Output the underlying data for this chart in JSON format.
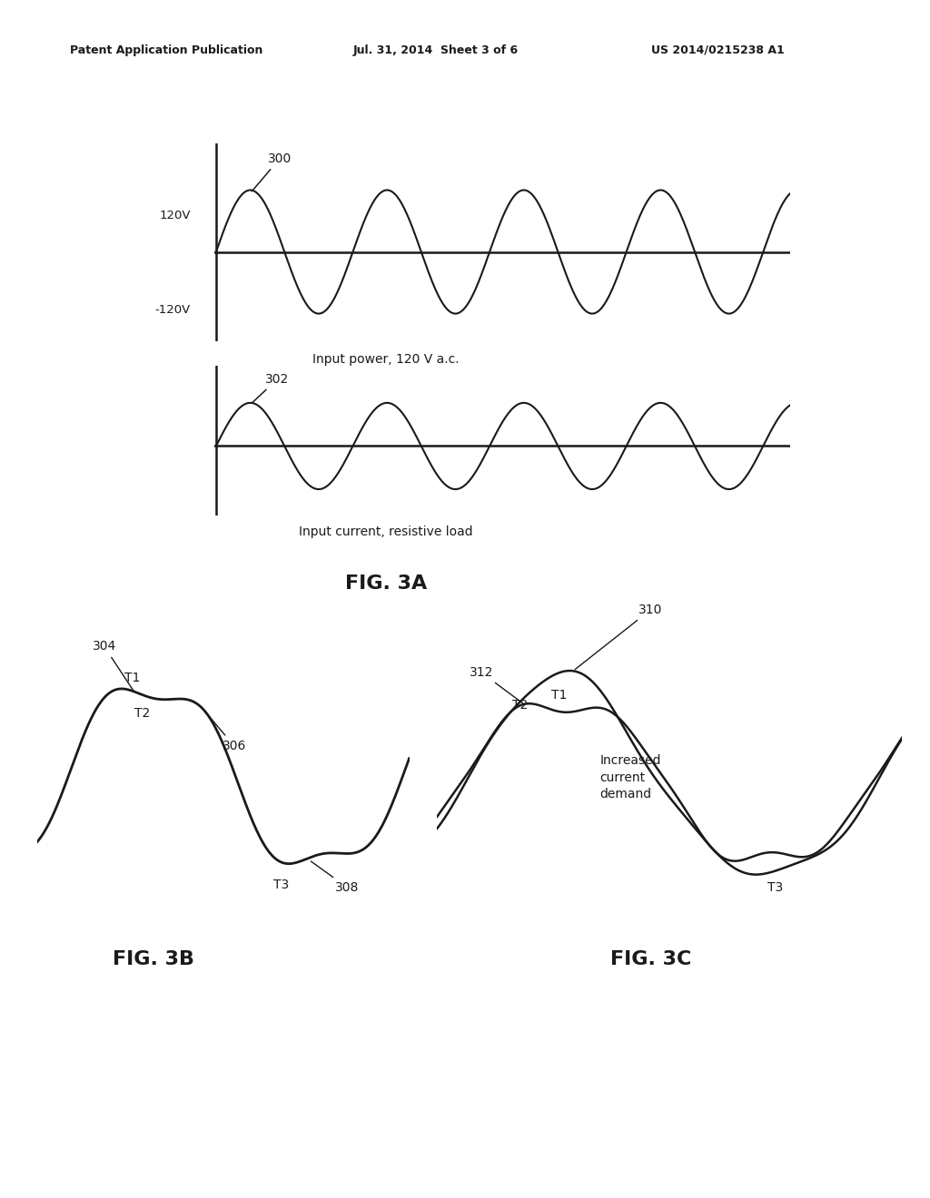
{
  "header_left": "Patent Application Publication",
  "header_center": "Jul. 31, 2014  Sheet 3 of 6",
  "header_right": "US 2014/0215238 A1",
  "fig3a_label": "FIG. 3A",
  "fig3b_label": "FIG. 3B",
  "fig3c_label": "FIG. 3C",
  "wave1_label": "300",
  "wave2_label": "302",
  "wave1_caption": "Input power, 120 V a.c.",
  "wave2_caption": "Input current, resistive load",
  "label_120V": "120V",
  "label_neg120V": "-120V",
  "fig3c_annotation": "Increased\ncurrent\ndemand",
  "background_color": "#ffffff",
  "line_color": "#1a1a1a",
  "text_color": "#1a1a1a"
}
